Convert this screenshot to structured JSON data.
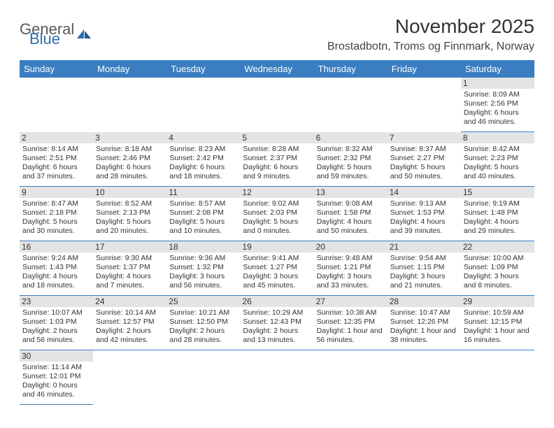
{
  "brand": {
    "part1": "General",
    "part2": "Blue",
    "part1_color": "#5a5a5a",
    "part2_color": "#2f6fb0"
  },
  "title": "November 2025",
  "location": "Brostadbotn, Troms og Finnmark, Norway",
  "header_bg": "#3a7ec1",
  "cell_border": "#3a7ec1",
  "daynum_bg": "#e4e4e4",
  "day_headers": [
    "Sunday",
    "Monday",
    "Tuesday",
    "Wednesday",
    "Thursday",
    "Friday",
    "Saturday"
  ],
  "weeks": [
    [
      null,
      null,
      null,
      null,
      null,
      null,
      {
        "n": "1",
        "sr": "Sunrise: 8:09 AM",
        "ss": "Sunset: 2:56 PM",
        "dl1": "Daylight: 6 hours",
        "dl2": "and 46 minutes."
      }
    ],
    [
      {
        "n": "2",
        "sr": "Sunrise: 8:14 AM",
        "ss": "Sunset: 2:51 PM",
        "dl1": "Daylight: 6 hours",
        "dl2": "and 37 minutes."
      },
      {
        "n": "3",
        "sr": "Sunrise: 8:18 AM",
        "ss": "Sunset: 2:46 PM",
        "dl1": "Daylight: 6 hours",
        "dl2": "and 28 minutes."
      },
      {
        "n": "4",
        "sr": "Sunrise: 8:23 AM",
        "ss": "Sunset: 2:42 PM",
        "dl1": "Daylight: 6 hours",
        "dl2": "and 18 minutes."
      },
      {
        "n": "5",
        "sr": "Sunrise: 8:28 AM",
        "ss": "Sunset: 2:37 PM",
        "dl1": "Daylight: 6 hours",
        "dl2": "and 9 minutes."
      },
      {
        "n": "6",
        "sr": "Sunrise: 8:32 AM",
        "ss": "Sunset: 2:32 PM",
        "dl1": "Daylight: 5 hours",
        "dl2": "and 59 minutes."
      },
      {
        "n": "7",
        "sr": "Sunrise: 8:37 AM",
        "ss": "Sunset: 2:27 PM",
        "dl1": "Daylight: 5 hours",
        "dl2": "and 50 minutes."
      },
      {
        "n": "8",
        "sr": "Sunrise: 8:42 AM",
        "ss": "Sunset: 2:23 PM",
        "dl1": "Daylight: 5 hours",
        "dl2": "and 40 minutes."
      }
    ],
    [
      {
        "n": "9",
        "sr": "Sunrise: 8:47 AM",
        "ss": "Sunset: 2:18 PM",
        "dl1": "Daylight: 5 hours",
        "dl2": "and 30 minutes."
      },
      {
        "n": "10",
        "sr": "Sunrise: 8:52 AM",
        "ss": "Sunset: 2:13 PM",
        "dl1": "Daylight: 5 hours",
        "dl2": "and 20 minutes."
      },
      {
        "n": "11",
        "sr": "Sunrise: 8:57 AM",
        "ss": "Sunset: 2:08 PM",
        "dl1": "Daylight: 5 hours",
        "dl2": "and 10 minutes."
      },
      {
        "n": "12",
        "sr": "Sunrise: 9:02 AM",
        "ss": "Sunset: 2:03 PM",
        "dl1": "Daylight: 5 hours",
        "dl2": "and 0 minutes."
      },
      {
        "n": "13",
        "sr": "Sunrise: 9:08 AM",
        "ss": "Sunset: 1:58 PM",
        "dl1": "Daylight: 4 hours",
        "dl2": "and 50 minutes."
      },
      {
        "n": "14",
        "sr": "Sunrise: 9:13 AM",
        "ss": "Sunset: 1:53 PM",
        "dl1": "Daylight: 4 hours",
        "dl2": "and 39 minutes."
      },
      {
        "n": "15",
        "sr": "Sunrise: 9:19 AM",
        "ss": "Sunset: 1:48 PM",
        "dl1": "Daylight: 4 hours",
        "dl2": "and 29 minutes."
      }
    ],
    [
      {
        "n": "16",
        "sr": "Sunrise: 9:24 AM",
        "ss": "Sunset: 1:43 PM",
        "dl1": "Daylight: 4 hours",
        "dl2": "and 18 minutes."
      },
      {
        "n": "17",
        "sr": "Sunrise: 9:30 AM",
        "ss": "Sunset: 1:37 PM",
        "dl1": "Daylight: 4 hours",
        "dl2": "and 7 minutes."
      },
      {
        "n": "18",
        "sr": "Sunrise: 9:36 AM",
        "ss": "Sunset: 1:32 PM",
        "dl1": "Daylight: 3 hours",
        "dl2": "and 56 minutes."
      },
      {
        "n": "19",
        "sr": "Sunrise: 9:41 AM",
        "ss": "Sunset: 1:27 PM",
        "dl1": "Daylight: 3 hours",
        "dl2": "and 45 minutes."
      },
      {
        "n": "20",
        "sr": "Sunrise: 9:48 AM",
        "ss": "Sunset: 1:21 PM",
        "dl1": "Daylight: 3 hours",
        "dl2": "and 33 minutes."
      },
      {
        "n": "21",
        "sr": "Sunrise: 9:54 AM",
        "ss": "Sunset: 1:15 PM",
        "dl1": "Daylight: 3 hours",
        "dl2": "and 21 minutes."
      },
      {
        "n": "22",
        "sr": "Sunrise: 10:00 AM",
        "ss": "Sunset: 1:09 PM",
        "dl1": "Daylight: 3 hours",
        "dl2": "and 8 minutes."
      }
    ],
    [
      {
        "n": "23",
        "sr": "Sunrise: 10:07 AM",
        "ss": "Sunset: 1:03 PM",
        "dl1": "Daylight: 2 hours",
        "dl2": "and 56 minutes."
      },
      {
        "n": "24",
        "sr": "Sunrise: 10:14 AM",
        "ss": "Sunset: 12:57 PM",
        "dl1": "Daylight: 2 hours",
        "dl2": "and 42 minutes."
      },
      {
        "n": "25",
        "sr": "Sunrise: 10:21 AM",
        "ss": "Sunset: 12:50 PM",
        "dl1": "Daylight: 2 hours",
        "dl2": "and 28 minutes."
      },
      {
        "n": "26",
        "sr": "Sunrise: 10:29 AM",
        "ss": "Sunset: 12:43 PM",
        "dl1": "Daylight: 2 hours",
        "dl2": "and 13 minutes."
      },
      {
        "n": "27",
        "sr": "Sunrise: 10:38 AM",
        "ss": "Sunset: 12:35 PM",
        "dl1": "Daylight: 1 hour and",
        "dl2": "56 minutes."
      },
      {
        "n": "28",
        "sr": "Sunrise: 10:47 AM",
        "ss": "Sunset: 12:26 PM",
        "dl1": "Daylight: 1 hour and",
        "dl2": "38 minutes."
      },
      {
        "n": "29",
        "sr": "Sunrise: 10:59 AM",
        "ss": "Sunset: 12:15 PM",
        "dl1": "Daylight: 1 hour and",
        "dl2": "16 minutes."
      }
    ],
    [
      {
        "n": "30",
        "sr": "Sunrise: 11:14 AM",
        "ss": "Sunset: 12:01 PM",
        "dl1": "Daylight: 0 hours",
        "dl2": "and 46 minutes."
      },
      null,
      null,
      null,
      null,
      null,
      null
    ]
  ]
}
